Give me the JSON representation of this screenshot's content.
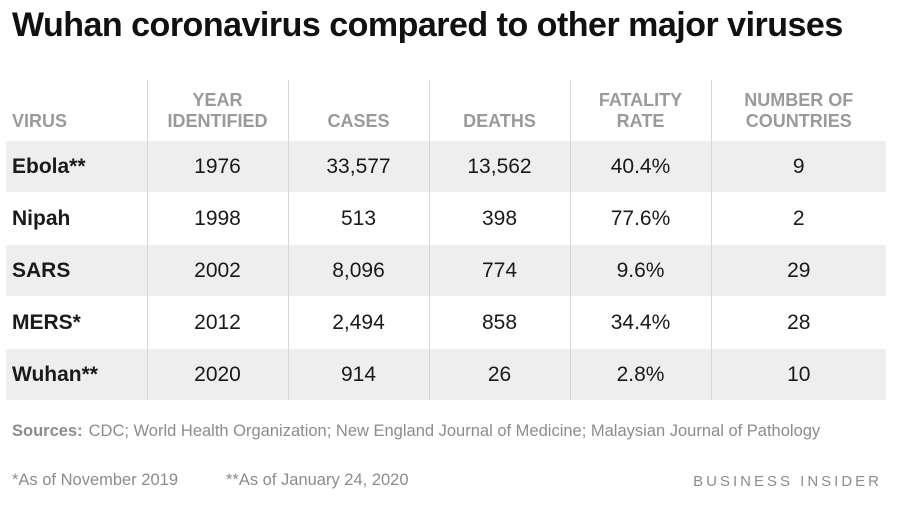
{
  "title": "Wuhan coronavirus compared to other major viruses",
  "chart_data": {
    "type": "table",
    "title": "Wuhan coronavirus compared to other major viruses",
    "columns": [
      [
        "VIRUS"
      ],
      [
        "YEAR",
        "IDENTIFIED"
      ],
      [
        "CASES"
      ],
      [
        "DEATHS"
      ],
      [
        "FATALITY",
        "RATE"
      ],
      [
        "NUMBER OF",
        "COUNTRIES"
      ]
    ],
    "rows": [
      [
        "Ebola**",
        "1976",
        "33,577",
        "13,562",
        "40.4%",
        "9"
      ],
      [
        "Nipah",
        "1998",
        "513",
        "398",
        "77.6%",
        "2"
      ],
      [
        "SARS",
        "2002",
        "8,096",
        "774",
        "9.6%",
        "29"
      ],
      [
        "MERS*",
        "2012",
        "2,494",
        "858",
        "34.4%",
        "28"
      ],
      [
        "Wuhan**",
        "2020",
        "914",
        "26",
        "2.8%",
        "10"
      ]
    ]
  },
  "sources": {
    "label": "Sources:",
    "text": "CDC; World Health Organization; New England Journal of Medicine; Malaysian Journal of Pathology"
  },
  "footnotes": {
    "single": "*As of November 2019",
    "double": "**As of January 24, 2020"
  },
  "brand": "BUSINESS INSIDER",
  "colors": {
    "title": "#111111",
    "header_text": "#9a9a9a",
    "band": "#eeeeee",
    "divider": "#d6d6d6",
    "footer_text": "#8c8c8c"
  }
}
